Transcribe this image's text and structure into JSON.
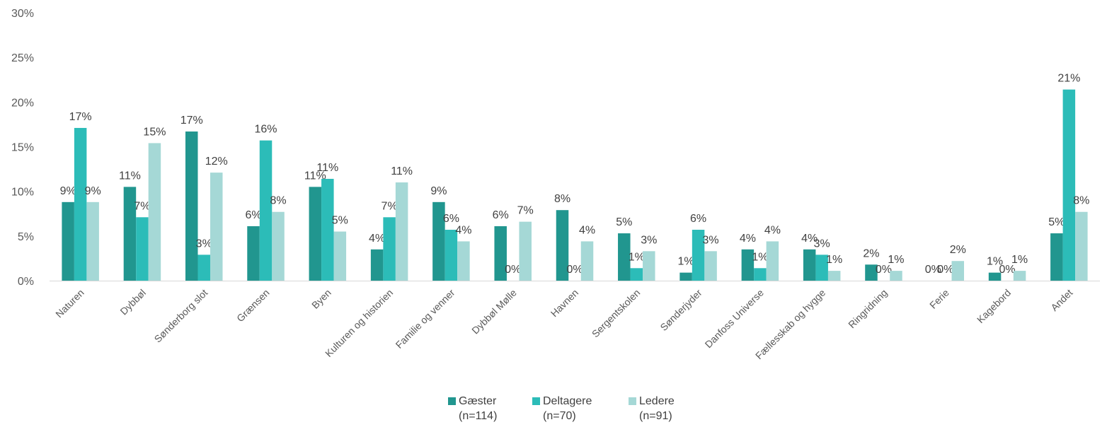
{
  "chart_data": {
    "type": "bar",
    "title": "",
    "xlabel": "",
    "ylabel": "",
    "ylim": [
      0,
      30
    ],
    "y_ticks": [
      "0%",
      "5%",
      "10%",
      "15%",
      "20%",
      "25%",
      "30%"
    ],
    "y_unit": "%",
    "grid": false,
    "legend_position": "bottom",
    "categories": [
      "Naturen",
      "Dybbøl",
      "Sønderborg slot",
      "Grænsen",
      "Byen",
      "Kulturen og historien",
      "Familie og venner",
      "Dybbøl Mølle",
      "Havnen",
      "Sergentskolen",
      "Sønderjyder",
      "Danfoss Universe",
      "Fællesskab og hygge",
      "Ringridning",
      "Ferie",
      "Kagebord",
      "Andet"
    ],
    "series": [
      {
        "name": "Gæster",
        "n_label": "(n=114)",
        "color": "#21968f",
        "values": [
          8.8,
          10.5,
          16.7,
          6.1,
          10.5,
          3.5,
          8.8,
          6.1,
          7.9,
          5.3,
          0.9,
          3.5,
          3.5,
          1.8,
          0.0,
          0.9,
          5.3
        ],
        "labels": [
          "9%",
          "11%",
          "17%",
          "6%",
          "11%",
          "4%",
          "9%",
          "6%",
          "8%",
          "5%",
          "1%",
          "4%",
          "4%",
          "2%",
          "0%",
          "1%",
          "5%"
        ]
      },
      {
        "name": "Deltagere",
        "n_label": "(n=70)",
        "color": "#2cbcb8",
        "values": [
          17.1,
          7.1,
          2.9,
          15.7,
          11.4,
          7.1,
          5.7,
          0.0,
          0.0,
          1.4,
          5.7,
          1.4,
          2.9,
          0.0,
          0.0,
          0.0,
          21.4
        ],
        "labels": [
          "17%",
          "7%",
          "3%",
          "16%",
          "11%",
          "7%",
          "6%",
          "0%",
          "0%",
          "1%",
          "6%",
          "1%",
          "3%",
          "0%",
          "0%",
          "0%",
          "21%"
        ]
      },
      {
        "name": "Ledere",
        "n_label": "(n=91)",
        "color": "#a5d8d6",
        "values": [
          8.8,
          15.4,
          12.1,
          7.7,
          5.5,
          11.0,
          4.4,
          6.6,
          4.4,
          3.3,
          3.3,
          4.4,
          1.1,
          1.1,
          2.2,
          1.1,
          7.7
        ],
        "labels": [
          "9%",
          "15%",
          "12%",
          "8%",
          "5%",
          "11%",
          "4%",
          "7%",
          "4%",
          "3%",
          "3%",
          "4%",
          "1%",
          "1%",
          "2%",
          "1%",
          "8%"
        ]
      }
    ]
  }
}
